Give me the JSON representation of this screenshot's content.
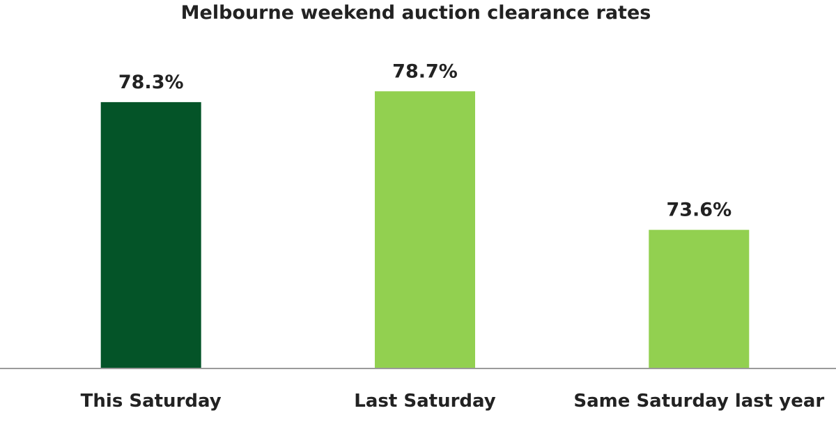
{
  "chart_data": {
    "type": "bar",
    "title": "Melbourne weekend auction clearance rates",
    "categories": [
      "This Saturday",
      "Last Saturday",
      "Same Saturday last year"
    ],
    "values": [
      78.3,
      78.7,
      73.6
    ],
    "value_labels": [
      "78.3%",
      "78.7%",
      "73.6%"
    ],
    "ylim": [
      68.5,
      79.5
    ],
    "grid": false,
    "axes_visible": false,
    "colors": [
      "#045428",
      "#92d050",
      "#92d050"
    ]
  }
}
